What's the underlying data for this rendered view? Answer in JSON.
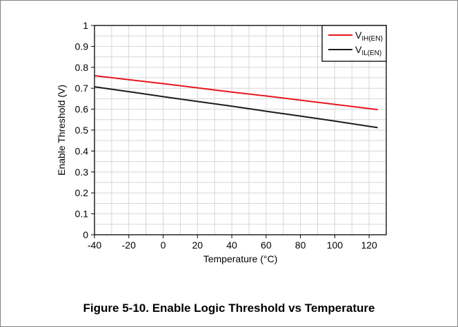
{
  "caption": "Figure 5-10. Enable Logic Threshold vs Temperature",
  "chart_data": {
    "type": "line",
    "title": "",
    "xlabel": "Temperature (°C)",
    "ylabel": "Enable Threshold (V)",
    "xlim": [
      -40,
      130
    ],
    "ylim": [
      0,
      1
    ],
    "grid": true,
    "legend_position": "top-right",
    "x_ticks": [
      -40,
      -20,
      0,
      20,
      40,
      60,
      80,
      100,
      120
    ],
    "x_tick_labels": [
      "-40",
      "-20",
      "0",
      "20",
      "40",
      "60",
      "80",
      "100",
      "120"
    ],
    "y_ticks": [
      0,
      0.1,
      0.2,
      0.3,
      0.4,
      0.5,
      0.6,
      0.7,
      0.8,
      0.9,
      1
    ],
    "y_tick_labels": [
      "0",
      "0.1",
      "0.2",
      "0.3",
      "0.4",
      "0.5",
      "0.6",
      "0.7",
      "0.8",
      "0.9",
      "1"
    ],
    "series": [
      {
        "name": "VIH(EN)",
        "legend": {
          "main": "V",
          "sub": "IH(EN)"
        },
        "color": "#e8141c",
        "x": [
          -40,
          -20,
          0,
          20,
          40,
          60,
          80,
          100,
          125
        ],
        "y": [
          0.76,
          0.741,
          0.722,
          0.702,
          0.682,
          0.663,
          0.643,
          0.623,
          0.598
        ]
      },
      {
        "name": "VIL(EN)",
        "legend": {
          "main": "V",
          "sub": "IL(EN)"
        },
        "color": "#1a1a1a",
        "x": [
          -40,
          -20,
          0,
          20,
          40,
          60,
          80,
          100,
          125
        ],
        "y": [
          0.707,
          0.684,
          0.66,
          0.637,
          0.614,
          0.59,
          0.567,
          0.543,
          0.512
        ]
      }
    ]
  }
}
